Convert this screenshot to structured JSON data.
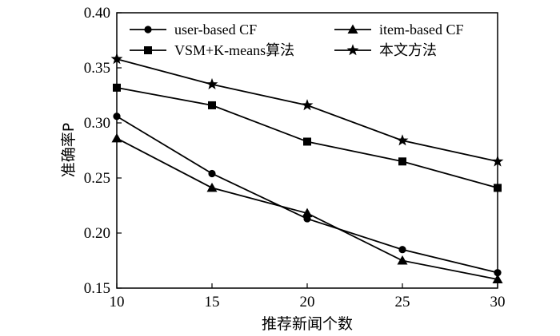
{
  "chart_data": {
    "type": "line",
    "title": "",
    "xlabel": "推荐新闻个数",
    "ylabel": "准确率P",
    "x": [
      10,
      15,
      20,
      25,
      30
    ],
    "xlim": [
      10,
      30
    ],
    "ylim": [
      0.15,
      0.4
    ],
    "xticks": [
      "10",
      "15",
      "20",
      "25",
      "30"
    ],
    "yticks": [
      "0.15",
      "0.20",
      "0.25",
      "0.30",
      "0.35",
      "0.40"
    ],
    "grid": false,
    "legend_position": "top",
    "series": [
      {
        "name": "user-based CF",
        "marker": "circle",
        "values": [
          0.306,
          0.254,
          0.213,
          0.185,
          0.164
        ]
      },
      {
        "name": "item-based CF",
        "marker": "triangle",
        "values": [
          0.286,
          0.241,
          0.218,
          0.175,
          0.158
        ]
      },
      {
        "name": "VSM+K-means算法",
        "marker": "square",
        "values": [
          0.332,
          0.316,
          0.283,
          0.265,
          0.241
        ]
      },
      {
        "name": "本文方法",
        "marker": "star",
        "values": [
          0.358,
          0.335,
          0.316,
          0.284,
          0.265
        ]
      }
    ],
    "line_color": "#000000"
  }
}
